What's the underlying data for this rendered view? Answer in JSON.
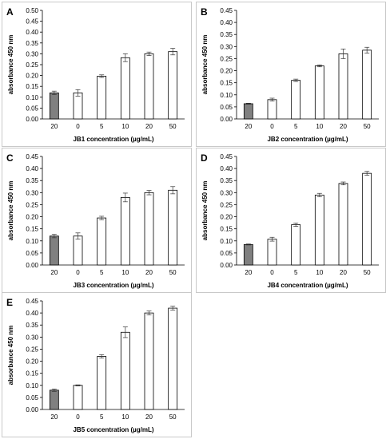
{
  "chart_data": [
    {
      "type": "bar",
      "panel_label": "A",
      "categories": [
        "20",
        "0",
        "5",
        "10",
        "20",
        "50"
      ],
      "values": [
        0.12,
        0.12,
        0.197,
        0.282,
        0.3,
        0.31
      ],
      "errors": [
        0.008,
        0.015,
        0.006,
        0.018,
        0.008,
        0.015
      ],
      "bar_fills": [
        "#808080",
        "#ffffff",
        "#ffffff",
        "#ffffff",
        "#ffffff",
        "#ffffff"
      ],
      "ylim": [
        0,
        0.5
      ],
      "yticks": [
        "0.00",
        "0.05",
        "0.10",
        "0.15",
        "0.20",
        "0.25",
        "0.30",
        "0.35",
        "0.40",
        "0.45",
        "0.50"
      ],
      "xlabel": "JB1 concentration (µg/mL)",
      "ylabel": "absorbance 450 nm",
      "grid": false
    },
    {
      "type": "bar",
      "panel_label": "B",
      "categories": [
        "20",
        "0",
        "5",
        "10",
        "20",
        "50"
      ],
      "values": [
        0.063,
        0.08,
        0.16,
        0.22,
        0.27,
        0.285
      ],
      "errors": [
        0.002,
        0.006,
        0.005,
        0.004,
        0.02,
        0.012
      ],
      "bar_fills": [
        "#808080",
        "#ffffff",
        "#ffffff",
        "#ffffff",
        "#ffffff",
        "#ffffff"
      ],
      "ylim": [
        0,
        0.45
      ],
      "yticks": [
        "0.00",
        "0.05",
        "0.10",
        "0.15",
        "0.20",
        "0.25",
        "0.30",
        "0.35",
        "0.40",
        "0.45"
      ],
      "xlabel": "JB2 concentration (µg/mL)",
      "ylabel": "absorbance 450 nm",
      "grid": false
    },
    {
      "type": "bar",
      "panel_label": "C",
      "categories": [
        "20",
        "0",
        "5",
        "10",
        "20",
        "50"
      ],
      "values": [
        0.12,
        0.12,
        0.195,
        0.28,
        0.3,
        0.31
      ],
      "errors": [
        0.007,
        0.013,
        0.007,
        0.018,
        0.009,
        0.015
      ],
      "bar_fills": [
        "#808080",
        "#ffffff",
        "#ffffff",
        "#ffffff",
        "#ffffff",
        "#ffffff"
      ],
      "ylim": [
        0,
        0.45
      ],
      "yticks": [
        "0.00",
        "0.05",
        "0.10",
        "0.15",
        "0.20",
        "0.25",
        "0.30",
        "0.35",
        "0.40",
        "0.45"
      ],
      "xlabel": "JB3 concentration (µg/mL)",
      "ylabel": "absorbance 450 nm",
      "grid": false
    },
    {
      "type": "bar",
      "panel_label": "D",
      "categories": [
        "20",
        "0",
        "5",
        "10",
        "20",
        "50"
      ],
      "values": [
        0.085,
        0.107,
        0.167,
        0.29,
        0.338,
        0.38
      ],
      "errors": [
        0.002,
        0.008,
        0.007,
        0.007,
        0.006,
        0.008
      ],
      "bar_fills": [
        "#808080",
        "#ffffff",
        "#ffffff",
        "#ffffff",
        "#ffffff",
        "#ffffff"
      ],
      "ylim": [
        0,
        0.45
      ],
      "yticks": [
        "0.00",
        "0.05",
        "0.10",
        "0.15",
        "0.20",
        "0.25",
        "0.30",
        "0.35",
        "0.40",
        "0.45"
      ],
      "xlabel": "JB4 concentration (µg/mL)",
      "ylabel": "absorbance 450 nm",
      "grid": false
    },
    {
      "type": "bar",
      "panel_label": "E",
      "categories": [
        "20",
        "0",
        "5",
        "10",
        "20",
        "50"
      ],
      "values": [
        0.08,
        0.1,
        0.22,
        0.32,
        0.4,
        0.42
      ],
      "errors": [
        0.005,
        0.002,
        0.007,
        0.022,
        0.008,
        0.008
      ],
      "bar_fills": [
        "#808080",
        "#ffffff",
        "#ffffff",
        "#ffffff",
        "#ffffff",
        "#ffffff"
      ],
      "ylim": [
        0,
        0.45
      ],
      "yticks": [
        "0.00",
        "0.05",
        "0.10",
        "0.15",
        "0.20",
        "0.25",
        "0.30",
        "0.35",
        "0.40",
        "0.45"
      ],
      "xlabel": "JB5 concentration (µg/mL)",
      "ylabel": "absorbance 450 nm",
      "grid": false
    }
  ]
}
